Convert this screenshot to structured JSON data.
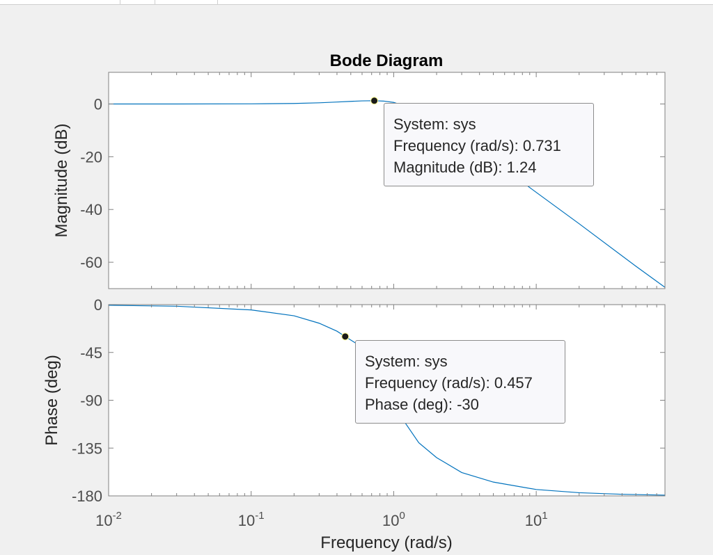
{
  "toolbar": {
    "separators": 3
  },
  "chart_data": {
    "type": "line",
    "title": "Bode Diagram",
    "xlabel": "Frequency  (rad/s)",
    "x_scale": "log",
    "xlim": [
      0.01,
      80
    ],
    "x_ticks": [
      {
        "value": 0.01,
        "base": "10",
        "exp": "-2"
      },
      {
        "value": 0.1,
        "base": "10",
        "exp": "-1"
      },
      {
        "value": 1,
        "base": "10",
        "exp": "0"
      },
      {
        "value": 10,
        "base": "10",
        "exp": "1"
      }
    ],
    "colors": {
      "line": "#0072bd",
      "axes_bg": "#ffffff",
      "axis": "#808080",
      "tick_label": "#4d4d4d",
      "label": "#262626"
    },
    "grid": false,
    "panels": [
      {
        "name": "magnitude",
        "ylabel": "Magnitude (dB)",
        "ylim": [
          -70,
          12
        ],
        "y_ticks": [
          0,
          -20,
          -40,
          -60
        ],
        "series": [
          {
            "x": [
              0.01,
              0.03,
              0.1,
              0.2,
              0.3,
              0.4,
              0.5,
              0.6,
              0.731,
              0.85,
              1,
              1.5,
              2,
              3,
              5,
              10,
              20,
              50,
              80
            ],
            "y": [
              0,
              0,
              0.05,
              0.2,
              0.45,
              0.75,
              1.0,
              1.18,
              1.24,
              1.1,
              0.6,
              -2.5,
              -6.3,
              -13,
              -21.5,
              -33.5,
              -45.4,
              -61.5,
              -69.5
            ]
          }
        ],
        "datatip": {
          "x": 0.731,
          "y": 1.24,
          "lines": [
            "System: sys",
            "Frequency (rad/s): 0.731",
            "Magnitude (dB): 1.24"
          ]
        }
      },
      {
        "name": "phase",
        "ylabel": "Phase (deg)",
        "ylim": [
          -180,
          0
        ],
        "y_ticks": [
          0,
          -45,
          -90,
          -135,
          -180
        ],
        "series": [
          {
            "x": [
              0.01,
              0.03,
              0.1,
              0.2,
              0.3,
              0.4,
              0.457,
              0.6,
              0.8,
              1,
              1.2,
              1.5,
              2,
              3,
              5,
              10,
              20,
              40,
              80
            ],
            "y": [
              -0.6,
              -1.5,
              -5,
              -10.5,
              -17.5,
              -25,
              -30,
              -40,
              -60,
              -90,
              -111,
              -130,
              -144,
              -158,
              -167,
              -174,
              -177,
              -178.5,
              -179.3
            ]
          }
        ],
        "datatip": {
          "x": 0.457,
          "y": -30,
          "lines": [
            "System: sys",
            "Frequency (rad/s): 0.457",
            "Phase (deg): -30"
          ]
        }
      }
    ]
  }
}
